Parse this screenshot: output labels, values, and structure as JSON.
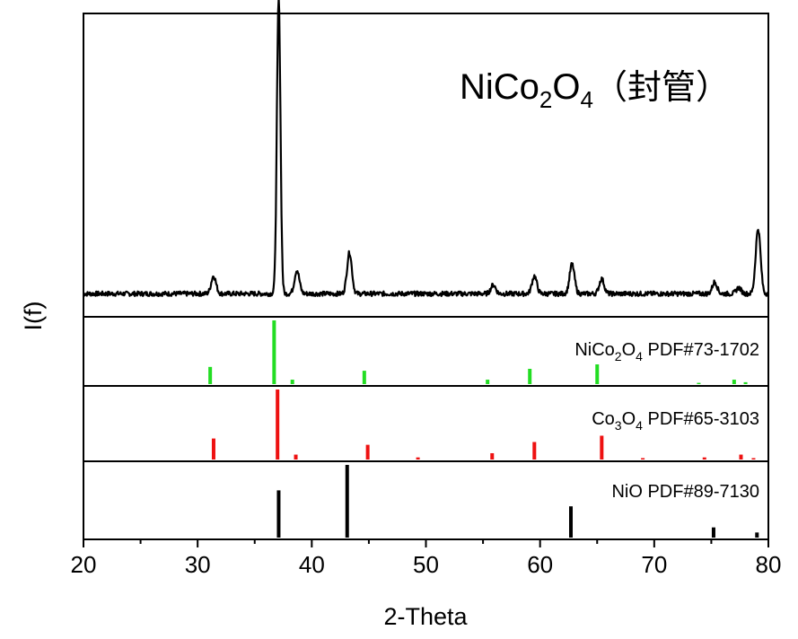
{
  "chart_data": {
    "type": "line",
    "title": "NiCo2O4（封管）",
    "title_parts": {
      "main": "NiCo",
      "sub1": "2",
      "mid": "O",
      "sub2": "4",
      "suffix": "（封管）"
    },
    "xlabel": "2-Theta",
    "ylabel": "I(f)",
    "xlim": [
      20,
      80
    ],
    "xticks": [
      "20",
      "30",
      "40",
      "50",
      "60",
      "70",
      "80"
    ],
    "colors": {
      "pattern": "#000000",
      "nico2o4": "#22dd22",
      "co3o4": "#ee1111",
      "nio": "#000000"
    },
    "pattern": {
      "baseline": 0.06,
      "peaks": [
        {
          "x": 31.4,
          "h": 0.06
        },
        {
          "x": 37.1,
          "h": 1.0
        },
        {
          "x": 38.7,
          "h": 0.08
        },
        {
          "x": 43.3,
          "h": 0.14
        },
        {
          "x": 55.9,
          "h": 0.03
        },
        {
          "x": 59.5,
          "h": 0.06
        },
        {
          "x": 62.8,
          "h": 0.1
        },
        {
          "x": 65.4,
          "h": 0.05
        },
        {
          "x": 75.3,
          "h": 0.04
        },
        {
          "x": 77.4,
          "h": 0.02
        },
        {
          "x": 79.1,
          "h": 0.22
        }
      ]
    },
    "references": [
      {
        "name": "NiCo2O4 PDF#73-1702",
        "label_parts": {
          "a": "NiCo",
          "s1": "2",
          "b": "O",
          "s2": "4",
          "c": " PDF#73-1702"
        },
        "color": "#22dd22",
        "sticks": [
          [
            31.1,
            0.27
          ],
          [
            36.7,
            1.0
          ],
          [
            38.3,
            0.07
          ],
          [
            44.6,
            0.21
          ],
          [
            55.4,
            0.07
          ],
          [
            59.1,
            0.24
          ],
          [
            65.0,
            0.31
          ],
          [
            73.9,
            0.02
          ],
          [
            77.0,
            0.07
          ],
          [
            78.0,
            0.03
          ]
        ]
      },
      {
        "name": "Co3O4 PDF#65-3103",
        "label_parts": {
          "a": "Co",
          "s1": "3",
          "b": "O",
          "s2": "4",
          "c": " PDF#65-3103"
        },
        "color": "#ee1111",
        "sticks": [
          [
            31.4,
            0.3
          ],
          [
            37.0,
            1.0
          ],
          [
            38.6,
            0.07
          ],
          [
            44.9,
            0.21
          ],
          [
            49.3,
            0.03
          ],
          [
            55.8,
            0.09
          ],
          [
            59.5,
            0.25
          ],
          [
            65.4,
            0.34
          ],
          [
            69.0,
            0.02
          ],
          [
            74.4,
            0.03
          ],
          [
            77.6,
            0.07
          ],
          [
            78.7,
            0.02
          ]
        ]
      },
      {
        "name": "NiO PDF#89-7130",
        "label_parts": {
          "a": "NiO PDF#89-7130",
          "s1": "",
          "b": "",
          "s2": "",
          "c": ""
        },
        "color": "#000000",
        "sticks": [
          [
            37.1,
            0.65
          ],
          [
            43.1,
            1.0
          ],
          [
            62.7,
            0.43
          ],
          [
            75.2,
            0.14
          ],
          [
            79.0,
            0.07
          ]
        ]
      }
    ]
  }
}
